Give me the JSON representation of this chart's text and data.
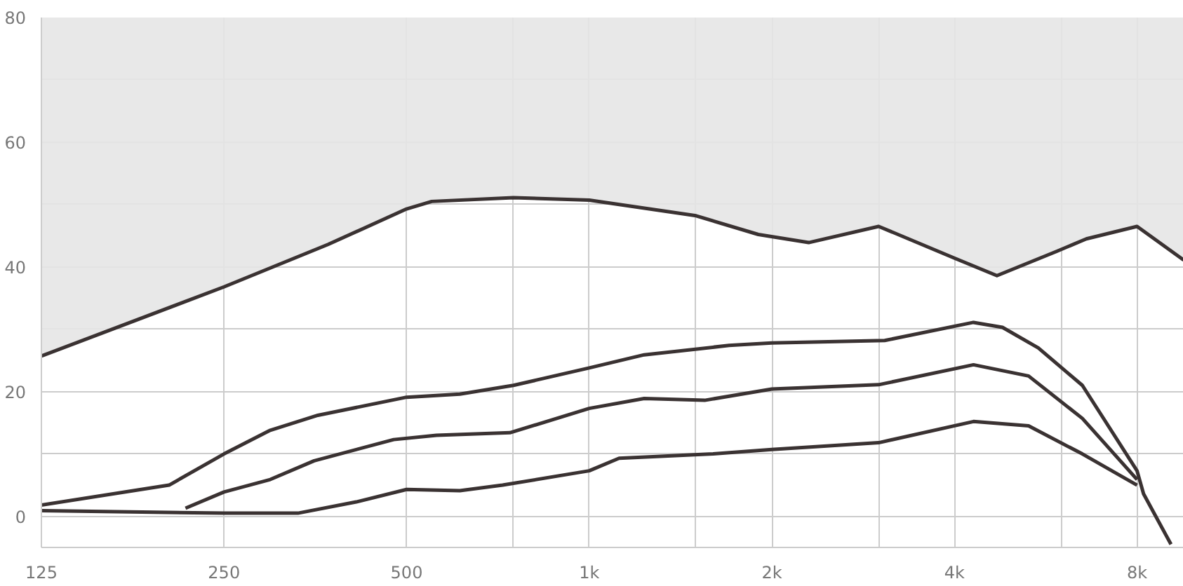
{
  "chart_data": {
    "type": "line",
    "log": "x",
    "grid": true,
    "marker": "none",
    "line_style": "solid",
    "xlim": [
      125,
      9550
    ],
    "ylim": [
      -5,
      80
    ],
    "xticks": [
      125,
      250,
      500,
      {
        "value": 750,
        "label": null
      },
      {
        "value": 1000,
        "label": "1k"
      },
      {
        "value": 1500,
        "label": null
      },
      {
        "value": 2000,
        "label": "2k"
      },
      {
        "value": 3000,
        "label": null
      },
      {
        "value": 4000,
        "label": "4k"
      },
      {
        "value": 6000,
        "label": null
      },
      {
        "value": 8000,
        "label": "8k"
      }
    ],
    "yticks": [
      0,
      {
        "value": 10,
        "label": null
      },
      20,
      {
        "value": 30,
        "label": null
      },
      40,
      {
        "value": 50,
        "label": null
      },
      60,
      {
        "value": 70,
        "label": null
      },
      80
    ],
    "series": [
      {
        "color": "#3a3232",
        "x": [
          125,
          250,
          371,
          500,
          550,
          750,
          1000,
          1500,
          1900,
          2300,
          3000,
          4000,
          4700,
          5900,
          6600,
          8000,
          9550
        ],
        "values": [
          25.7,
          36.8,
          43.6,
          49.3,
          50.5,
          51.1,
          50.7,
          48.2,
          45.2,
          43.9,
          46.5,
          41.4,
          38.6,
          42.5,
          44.5,
          46.5,
          41.1
        ],
        "lower": [
          25.7,
          36.8,
          43.6,
          49.3,
          50.5,
          51.1,
          50.7,
          48.2,
          45.2,
          43.9,
          46.5,
          41.4,
          38.6,
          42.5,
          44.5,
          46.5,
          41.1
        ],
        "upper": [
          80,
          80,
          80,
          80,
          80,
          80,
          80,
          80,
          80,
          80,
          80,
          80,
          80,
          80,
          80,
          80,
          80
        ]
      },
      {
        "color": "#3a3232",
        "x": [
          125,
          203,
          250,
          298,
          357,
          500,
          612,
          750,
          1000,
          1232,
          1700,
          2000,
          3070,
          4300,
          4800,
          5500,
          6500,
          8000,
          8200,
          9100
        ],
        "values": [
          1.8,
          5,
          10,
          13.8,
          16.2,
          19.1,
          19.6,
          21,
          23.8,
          25.9,
          27.4,
          27.8,
          28.2,
          31.1,
          30.3,
          27,
          21,
          7.3,
          3.6,
          -4.5
        ]
      },
      {
        "color": "#3a3232",
        "x": [
          216,
          250,
          298,
          352,
          476,
          560,
          740,
          1000,
          1232,
          1550,
          2000,
          3000,
          4300,
          5300,
          6500,
          8000
        ],
        "values": [
          1.3,
          3.9,
          5.9,
          8.9,
          12.3,
          13,
          13.4,
          17.3,
          18.9,
          18.6,
          20.4,
          21.1,
          24.3,
          22.5,
          15.7,
          5.9
        ]
      },
      {
        "color": "#3a3232",
        "x": [
          125,
          250,
          331,
          413,
          500,
          612,
          720,
          1000,
          1120,
          1600,
          2000,
          3000,
          4300,
          5300,
          6500,
          8000
        ],
        "values": [
          0.9,
          0.5,
          0.5,
          2.3,
          4.3,
          4.1,
          5,
          7.3,
          9.3,
          10,
          10.7,
          11.8,
          15.2,
          14.5,
          10,
          5
        ]
      }
    ]
  }
}
